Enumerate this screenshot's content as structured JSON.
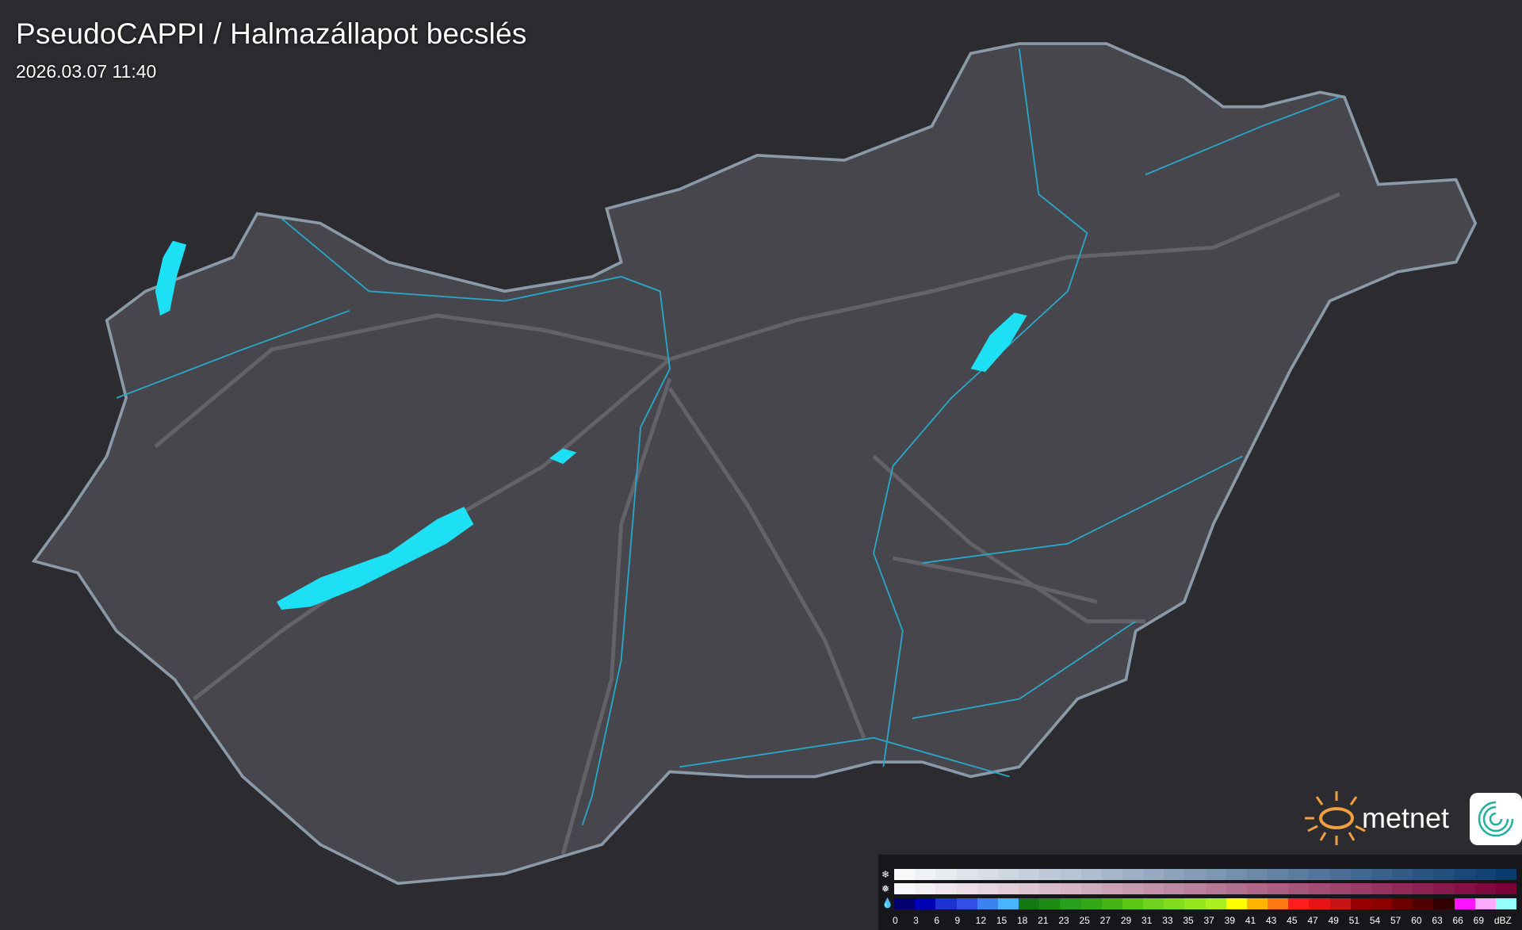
{
  "header": {
    "title": "PseudoCAPPI  / Halmazállapot becslés",
    "timestamp": "2026.03.07 11:40"
  },
  "map": {
    "background": "#2b2b30",
    "country_fill": "#45454b",
    "border_color": "#8a9aa8",
    "river_color": "#2aa6c8",
    "lake_color": "#1ee0f5",
    "road_color": "#6a6a70"
  },
  "legend": {
    "rows": [
      {
        "type": "snow",
        "icon": "snowflake-icon"
      },
      {
        "type": "mixed",
        "icon": "sleet-icon"
      },
      {
        "type": "rain",
        "icon": "raindrop-icon"
      }
    ],
    "labels": [
      "0",
      "3",
      "6",
      "9",
      "12",
      "15",
      "18",
      "21",
      "23",
      "25",
      "27",
      "29",
      "31",
      "33",
      "35",
      "37",
      "39",
      "41",
      "43",
      "45",
      "47",
      "49",
      "51",
      "54",
      "57",
      "60",
      "63",
      "66",
      "69"
    ],
    "unit": "dBZ",
    "rain_colors": [
      "#00006e",
      "#0000b4",
      "#1e32d2",
      "#3250e6",
      "#3c82f0",
      "#46b4ff",
      "#147814",
      "#1e8c14",
      "#28a01e",
      "#32a814",
      "#46b414",
      "#5ac814",
      "#6ed21e",
      "#82dc1e",
      "#96e61e",
      "#aaf01e",
      "#ffff00",
      "#ffb400",
      "#ff7814",
      "#ff1e1e",
      "#e61414",
      "#c81414",
      "#960000",
      "#8c0000",
      "#6e0000",
      "#500000",
      "#320000",
      "#ff14ff",
      "#ffaaff",
      "#96ffff"
    ],
    "snow_range": [
      "#f8f8fa",
      "#0a3a6e"
    ],
    "mixed_range": [
      "#f8f8fa",
      "#7a0038"
    ]
  },
  "logo": {
    "text": "metnet",
    "sun_color": "#f0a040"
  }
}
